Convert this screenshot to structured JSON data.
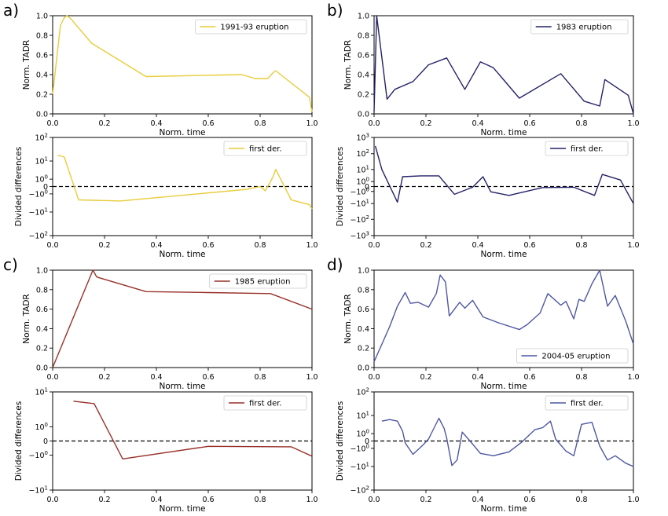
{
  "colors": {
    "a": "#e8cc3a",
    "b": "#242268",
    "c": "#98302a",
    "d": "#4e57a2"
  },
  "chart_data": [
    {
      "type": "line",
      "panel": "a)",
      "xlabel": "Norm. time",
      "ylabel": "Norm. TADR",
      "xlim": [
        0,
        1
      ],
      "ylim": [
        0,
        1
      ],
      "grid": false,
      "legend_position": "top-right",
      "xticks": [
        "0.0",
        "0.2",
        "0.4",
        "0.6",
        "0.8",
        "1.0"
      ],
      "yticks": [
        "0.0",
        "0.2",
        "0.4",
        "0.6",
        "0.8",
        "1.0"
      ],
      "series": [
        {
          "name": "1991-93 eruption",
          "color": "#e8cc3a",
          "x": [
            0,
            0.03,
            0.045,
            0.055,
            0.07,
            0.15,
            0.36,
            0.73,
            0.78,
            0.83,
            0.85,
            0.86,
            0.99,
            1.0
          ],
          "y": [
            0.2,
            0.9,
            0.98,
            1.0,
            0.97,
            0.72,
            0.38,
            0.4,
            0.36,
            0.36,
            0.42,
            0.44,
            0.17,
            0.02
          ]
        }
      ]
    },
    {
      "type": "line",
      "panel": "",
      "xlabel": "Norm. time",
      "ylabel": "Divided differences",
      "xlim": [
        0,
        1
      ],
      "yscale": "symlog",
      "ylim": [
        -100,
        100
      ],
      "grid": false,
      "legend_position": "top-right",
      "xticks": [
        "0.0",
        "0.2",
        "0.4",
        "0.6",
        "0.8",
        "1.0"
      ],
      "yticks": [
        "10^2",
        "10^1",
        "10^0",
        "0",
        "-10^0",
        "-10^1",
        "-10^2"
      ],
      "reference_line": 0,
      "series": [
        {
          "name": "first der.",
          "color": "#e8cc3a",
          "x": [
            0.02,
            0.045,
            0.1,
            0.26,
            0.75,
            0.8,
            0.82,
            0.85,
            0.86,
            0.92,
            0.99,
            1.0
          ],
          "y": [
            18,
            15,
            -2.5,
            -2.9,
            -0.3,
            0,
            -0.5,
            1.5,
            4,
            -2.5,
            -4.5,
            -7
          ]
        }
      ]
    },
    {
      "type": "line",
      "panel": "b)",
      "xlabel": "Norm. time",
      "ylabel": "Norm. TADR",
      "xlim": [
        0,
        1
      ],
      "ylim": [
        0,
        1
      ],
      "grid": false,
      "legend_position": "top-right",
      "xticks": [
        "0.0",
        "0.2",
        "0.4",
        "0.6",
        "0.8",
        "1.0"
      ],
      "yticks": [
        "0.0",
        "0.2",
        "0.4",
        "0.6",
        "0.8",
        "1.0"
      ],
      "series": [
        {
          "name": "1983 eruption",
          "color": "#242268",
          "x": [
            0,
            0.01,
            0.05,
            0.08,
            0.15,
            0.21,
            0.28,
            0.35,
            0.41,
            0.46,
            0.56,
            0.72,
            0.81,
            0.87,
            0.89,
            0.98,
            1.0
          ],
          "y": [
            0.02,
            1.0,
            0.15,
            0.25,
            0.33,
            0.5,
            0.57,
            0.25,
            0.53,
            0.47,
            0.16,
            0.41,
            0.13,
            0.08,
            0.35,
            0.19,
            0.0
          ]
        }
      ]
    },
    {
      "type": "line",
      "panel": "",
      "xlabel": "Norm. time",
      "ylabel": "Divided differences",
      "xlim": [
        0,
        1
      ],
      "yscale": "symlog",
      "ylim": [
        -1000,
        1000
      ],
      "grid": false,
      "legend_position": "top-right",
      "xticks": [
        "0.0",
        "0.2",
        "0.4",
        "0.6",
        "0.8",
        "1.0"
      ],
      "yticks": [
        "10^3",
        "10^2",
        "10^1",
        "10^0",
        "0",
        "-10^0",
        "-10^1",
        "-10^2",
        "-10^3"
      ],
      "reference_line": 0,
      "series": [
        {
          "name": "first der.",
          "color": "#242268",
          "x": [
            0.005,
            0.03,
            0.09,
            0.11,
            0.18,
            0.25,
            0.31,
            0.38,
            0.42,
            0.45,
            0.52,
            0.65,
            0.77,
            0.85,
            0.88,
            0.95,
            1.0
          ],
          "y": [
            300,
            10,
            -8,
            3,
            3.5,
            3.5,
            -2,
            -0.1,
            3,
            -1.1,
            -2.5,
            -0.15,
            -0.1,
            -2.5,
            4.5,
            1.5,
            -10
          ]
        }
      ]
    },
    {
      "type": "line",
      "panel": "c)",
      "xlabel": "Norm. time",
      "ylabel": "Norm. TADR",
      "xlim": [
        0,
        1
      ],
      "ylim": [
        0,
        1
      ],
      "grid": false,
      "legend_position": "top-right",
      "xticks": [
        "0.0",
        "0.2",
        "0.4",
        "0.6",
        "0.8",
        "1.0"
      ],
      "yticks": [
        "0.0",
        "0.2",
        "0.4",
        "0.6",
        "0.8",
        "1.0"
      ],
      "series": [
        {
          "name": "1985 eruption",
          "color": "#98302a",
          "x": [
            0,
            0.155,
            0.17,
            0.36,
            0.6,
            0.84,
            1.0
          ],
          "y": [
            0.0,
            1.0,
            0.93,
            0.78,
            0.77,
            0.76,
            0.6
          ]
        }
      ]
    },
    {
      "type": "line",
      "panel": "",
      "xlabel": "Norm. time",
      "ylabel": "Divided differences",
      "xlim": [
        0,
        1
      ],
      "yscale": "symlog",
      "ylim": [
        -10,
        10
      ],
      "grid": false,
      "legend_position": "top-right",
      "xticks": [
        "0.0",
        "0.2",
        "0.4",
        "0.6",
        "0.8",
        "1.0"
      ],
      "yticks": [
        "10^1",
        "10^0",
        "0",
        "-10^0",
        "-10^1"
      ],
      "reference_line": 0,
      "series": [
        {
          "name": "first der.",
          "color": "#98302a",
          "x": [
            0.08,
            0.16,
            0.27,
            0.6,
            0.92,
            1.0
          ],
          "y": [
            6.0,
            5.2,
            -1.4,
            -0.3,
            -0.33,
            -1.1
          ]
        }
      ]
    },
    {
      "type": "line",
      "panel": "d)",
      "xlabel": "Norm. time",
      "ylabel": "Norm. TADR",
      "xlim": [
        0,
        1
      ],
      "ylim": [
        0,
        1
      ],
      "grid": false,
      "legend_position": "lower-right",
      "xticks": [
        "0.0",
        "0.2",
        "0.4",
        "0.6",
        "0.8",
        "1.0"
      ],
      "yticks": [
        "0.0",
        "0.2",
        "0.4",
        "0.6",
        "0.8",
        "1.0"
      ],
      "series": [
        {
          "name": "2004-05 eruption",
          "color": "#4e57a2",
          "x": [
            0,
            0.06,
            0.09,
            0.12,
            0.14,
            0.17,
            0.21,
            0.24,
            0.255,
            0.275,
            0.29,
            0.33,
            0.35,
            0.38,
            0.42,
            0.48,
            0.56,
            0.59,
            0.64,
            0.67,
            0.72,
            0.74,
            0.77,
            0.79,
            0.81,
            0.84,
            0.87,
            0.9,
            0.93,
            0.97,
            1.0
          ],
          "y": [
            0.06,
            0.42,
            0.63,
            0.77,
            0.66,
            0.67,
            0.62,
            0.76,
            0.95,
            0.88,
            0.53,
            0.67,
            0.61,
            0.69,
            0.52,
            0.46,
            0.39,
            0.44,
            0.56,
            0.76,
            0.64,
            0.68,
            0.5,
            0.7,
            0.68,
            0.86,
            1.0,
            0.63,
            0.74,
            0.48,
            0.24
          ]
        }
      ]
    },
    {
      "type": "line",
      "panel": "",
      "xlabel": "Norm. time",
      "ylabel": "Divided differences",
      "xlim": [
        0,
        1
      ],
      "yscale": "symlog",
      "ylim": [
        -100,
        100
      ],
      "grid": false,
      "legend_position": "top-right",
      "xticks": [
        "0.0",
        "0.2",
        "0.4",
        "0.6",
        "0.8",
        "1.0"
      ],
      "yticks": [
        "10^2",
        "10^1",
        "10^0",
        "0",
        "-10^0",
        "-10^1",
        "-10^2"
      ],
      "reference_line": 0,
      "series": [
        {
          "name": "first der.",
          "color": "#4e57a2",
          "x": [
            0.03,
            0.06,
            0.09,
            0.11,
            0.12,
            0.15,
            0.19,
            0.21,
            0.25,
            0.27,
            0.28,
            0.3,
            0.32,
            0.34,
            0.37,
            0.41,
            0.46,
            0.52,
            0.57,
            0.62,
            0.65,
            0.68,
            0.7,
            0.74,
            0.77,
            0.8,
            0.84,
            0.87,
            0.9,
            0.93,
            0.97,
            1.0
          ],
          "y": [
            5.5,
            6.5,
            5.5,
            1.5,
            -0.2,
            -2.5,
            -0.4,
            0.2,
            7.5,
            2.3,
            0.3,
            -9,
            -5,
            1.3,
            0,
            -2.2,
            -3,
            -1.8,
            -0.1,
            1.9,
            2.5,
            5.5,
            0.2,
            -1.6,
            -3,
            3.8,
            4.8,
            -0.6,
            -5,
            -3,
            -7,
            -10
          ]
        }
      ]
    }
  ]
}
